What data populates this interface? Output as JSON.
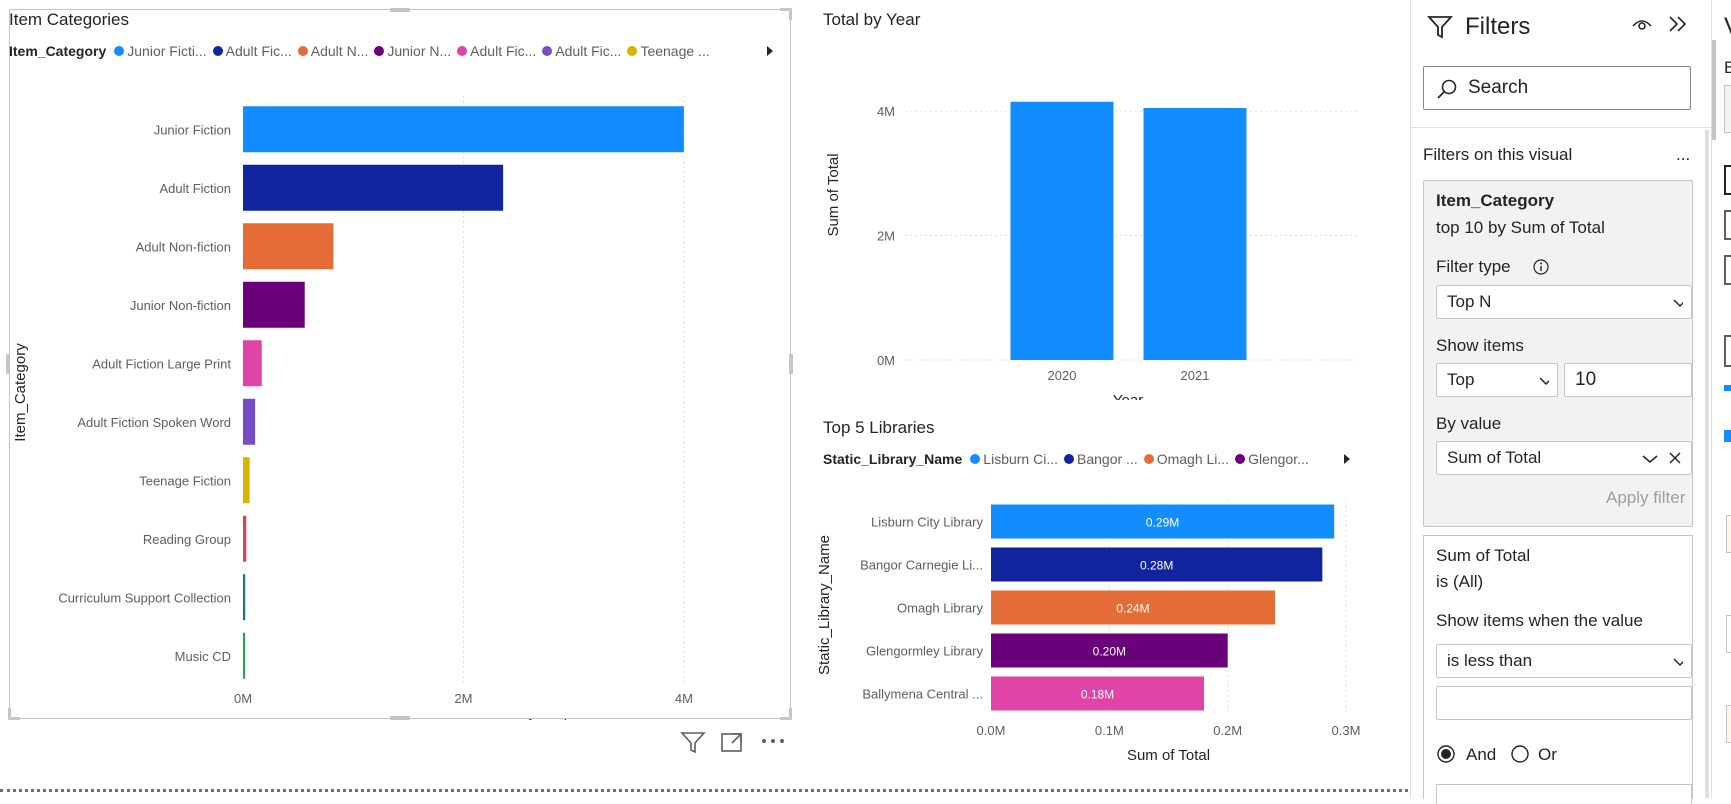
{
  "item_categories": {
    "title": "Item Categories",
    "legend_title": "Item_Category",
    "legend": [
      {
        "label": "Junior Ficti...",
        "color": "#118DFF"
      },
      {
        "label": "Adult Fic...",
        "color": "#12239E"
      },
      {
        "label": "Adult N...",
        "color": "#E66C37"
      },
      {
        "label": "Junior N...",
        "color": "#6B007B"
      },
      {
        "label": "Adult Fic...",
        "color": "#E044A7"
      },
      {
        "label": "Adult Fic...",
        "color": "#744EC2"
      },
      {
        "label": "Teenage ...",
        "color": "#D9B300"
      }
    ],
    "toolbar": {
      "filter_icon": "filter-icon",
      "focus_icon": "focus-mode-icon",
      "more_icon": "more-options-icon"
    }
  },
  "total_by_year": {
    "title": "Total by Year"
  },
  "top5": {
    "title": "Top 5 Libraries",
    "legend_title": "Static_Library_Name",
    "legend": [
      {
        "label": "Lisburn Ci...",
        "color": "#118DFF"
      },
      {
        "label": "Bangor ...",
        "color": "#12239E"
      },
      {
        "label": "Omagh Li...",
        "color": "#E66C37"
      },
      {
        "label": "Glengor...",
        "color": "#6B007B"
      }
    ]
  },
  "chart_data": [
    {
      "type": "bar",
      "orientation": "horizontal",
      "title": "Item Categories",
      "categories": [
        "Junior Fiction",
        "Adult Fiction",
        "Adult Non-fiction",
        "Junior Non-fiction",
        "Adult Fiction Large Print",
        "Adult Fiction Spoken Word",
        "Teenage Fiction",
        "Reading Group",
        "Curriculum Support Collection",
        "Music CD"
      ],
      "values": [
        4.0,
        2.36,
        0.82,
        0.56,
        0.17,
        0.11,
        0.06,
        0.03,
        0.02,
        0.01
      ],
      "colors": [
        "#118DFF",
        "#12239E",
        "#E66C37",
        "#6B007B",
        "#E044A7",
        "#744EC2",
        "#D9B300",
        "#D64550",
        "#197278",
        "#1AAB40"
      ],
      "xlabel": "Sum of Total",
      "ylabel": "Item_Category",
      "xlim": [
        0,
        4.4
      ],
      "xticks": [
        {
          "v": 0,
          "label": "0M"
        },
        {
          "v": 2,
          "label": "2M"
        },
        {
          "v": 4,
          "label": "4M"
        }
      ]
    },
    {
      "type": "bar",
      "title": "Total by Year",
      "categories": [
        "2020",
        "2021"
      ],
      "values": [
        4.15,
        4.05
      ],
      "color": "#118DFF",
      "xlabel": "Year",
      "ylabel": "Sum of Total",
      "ylim": [
        0,
        4.5
      ],
      "yticks": [
        {
          "v": 0,
          "label": "0M"
        },
        {
          "v": 2,
          "label": "2M"
        },
        {
          "v": 4,
          "label": "4M"
        }
      ]
    },
    {
      "type": "bar",
      "orientation": "horizontal",
      "title": "Top 5 Libraries",
      "categories": [
        "Lisburn City Library",
        "Bangor Carnegie Li...",
        "Omagh Library",
        "Glengormley Library",
        "Ballymena Central ..."
      ],
      "values": [
        0.29,
        0.28,
        0.24,
        0.2,
        0.18
      ],
      "data_labels": [
        "0.29M",
        "0.28M",
        "0.24M",
        "0.20M",
        "0.18M"
      ],
      "colors": [
        "#118DFF",
        "#12239E",
        "#E66C37",
        "#6B007B",
        "#E044A7"
      ],
      "xlabel": "Sum of Total",
      "ylabel": "Static_Library_Name",
      "xlim": [
        0,
        0.3
      ],
      "xticks": [
        {
          "v": 0,
          "label": "0.0M"
        },
        {
          "v": 0.1,
          "label": "0.1M"
        },
        {
          "v": 0.2,
          "label": "0.2M"
        },
        {
          "v": 0.3,
          "label": "0.3M"
        }
      ]
    }
  ],
  "filters": {
    "title": "Filters",
    "search_placeholder": "Search",
    "section": "Filters on this visual",
    "more": "...",
    "card1": {
      "field": "Item_Category",
      "summary": "top 10 by Sum of Total",
      "filter_type_label": "Filter type",
      "filter_type_value": "Top N",
      "show_items_label": "Show items",
      "show_items_value": "Top",
      "count": "10",
      "by_value_label": "By value",
      "by_value": "Sum of Total",
      "apply": "Apply filter"
    },
    "card2": {
      "field": "Sum of Total",
      "summary": "is (All)",
      "condition_label": "Show items when the value",
      "condition_value": "is less than",
      "value": "",
      "and": "And",
      "or": "Or"
    }
  },
  "right_strip": {
    "letter1": "V",
    "letter2": "B"
  }
}
